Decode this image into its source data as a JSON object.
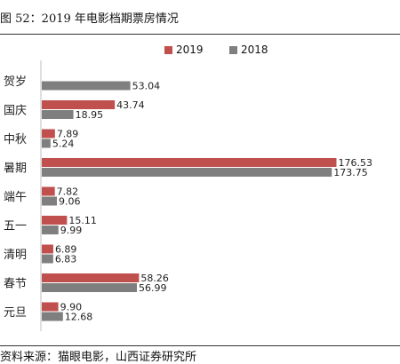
{
  "figure_title": "图 52：2019 年电影档期票房情况",
  "source_note": "资料来源：猫眼电影，山西证券研究所",
  "legend": {
    "series_a": "2019",
    "series_b": "2018"
  },
  "colors": {
    "series_a": "#c0504d",
    "series_b": "#7f7f7f"
  },
  "chart_data": {
    "type": "bar",
    "orientation": "horizontal",
    "categories": [
      "贺岁",
      "国庆",
      "中秋",
      "暑期",
      "端午",
      "五一",
      "清明",
      "春节",
      "元旦"
    ],
    "series": [
      {
        "name": "2019",
        "values": [
          null,
          43.74,
          7.89,
          176.53,
          7.82,
          15.11,
          6.89,
          58.26,
          9.9
        ],
        "labels": [
          "",
          "43.74",
          "7.89",
          "176.53",
          "7.82",
          "15.11",
          "6.89",
          "58.26",
          "9.90"
        ]
      },
      {
        "name": "2018",
        "values": [
          53.04,
          18.95,
          5.24,
          173.75,
          9.06,
          9.99,
          6.83,
          56.99,
          12.68
        ],
        "labels": [
          "53.04",
          "18.95",
          "5.24",
          "173.75",
          "9.06",
          "9.99",
          "6.83",
          "56.99",
          "12.68"
        ]
      }
    ],
    "xlim": [
      0,
      180
    ],
    "title": "",
    "xlabel": "",
    "ylabel": "",
    "grid": false,
    "legend_position": "top-right"
  }
}
